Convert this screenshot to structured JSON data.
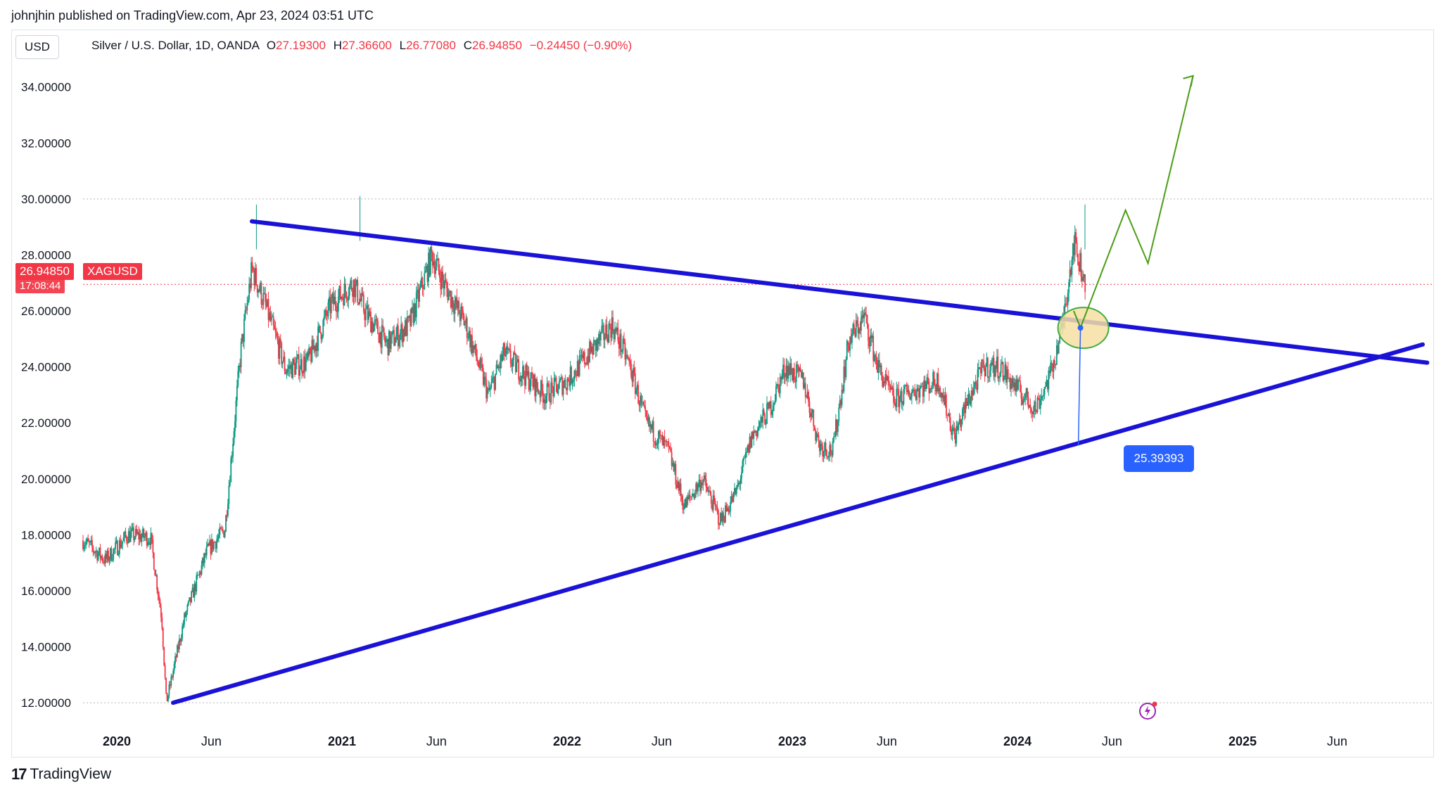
{
  "header": {
    "text": "johnjhin published on TradingView.com, Apr 23, 2024 03:51 UTC"
  },
  "toolbar": {
    "currency": "USD"
  },
  "legend": {
    "symbol": "Silver / U.S. Dollar, 1D, OANDA",
    "o_label": "O",
    "o_value": "27.19300",
    "h_label": "H",
    "h_value": "27.36600",
    "l_label": "L",
    "l_value": "26.77080",
    "c_label": "C",
    "c_value": "26.94850",
    "change": "−0.24450 (−0.90%)"
  },
  "price_tag": {
    "value": "26.94850",
    "time": "17:08:44",
    "symbol": "XAGUSD"
  },
  "point_badge": {
    "value": "25.39393"
  },
  "footer": {
    "logo": "17",
    "brand": "TradingView"
  },
  "colors": {
    "up": "#089981",
    "down": "#f23645",
    "trend": "#1a12d6",
    "projection": "#4a9d16",
    "badge": "#2962ff",
    "highlight": "#f6dfa3"
  },
  "chart_data": {
    "type": "line",
    "title": "Silver / U.S. Dollar, 1D, OANDA",
    "xlabel": "",
    "ylabel": "",
    "ylim": [
      11.4,
      35.6
    ],
    "xlim": [
      2019.85,
      2025.85
    ],
    "grid": false,
    "y_ticks": [
      "34.00000",
      "32.00000",
      "30.00000",
      "28.00000",
      "26.00000",
      "24.00000",
      "22.00000",
      "20.00000",
      "18.00000",
      "16.00000",
      "14.00000",
      "12.00000"
    ],
    "y_tick_values": [
      34,
      32,
      30,
      28,
      26,
      24,
      22,
      20,
      18,
      16,
      14,
      12
    ],
    "x_ticks": [
      {
        "label": "2020",
        "t": 2020.0
      },
      {
        "label": "Jun",
        "t": 2020.42
      },
      {
        "label": "2021",
        "t": 2021.0
      },
      {
        "label": "Jun",
        "t": 2021.42
      },
      {
        "label": "2022",
        "t": 2022.0
      },
      {
        "label": "Jun",
        "t": 2022.42
      },
      {
        "label": "2023",
        "t": 2023.0
      },
      {
        "label": "Jun",
        "t": 2023.42
      },
      {
        "label": "2024",
        "t": 2024.0
      },
      {
        "label": "Jun",
        "t": 2024.42
      },
      {
        "label": "2025",
        "t": 2025.0
      },
      {
        "label": "Jun",
        "t": 2025.42
      }
    ],
    "reference_lines": [
      30.0,
      26.9485,
      12.0
    ],
    "series": [
      {
        "name": "XAGUSD close",
        "x": [
          2019.85,
          2019.95,
          2020.05,
          2020.15,
          2020.2,
          2020.22,
          2020.3,
          2020.4,
          2020.48,
          2020.55,
          2020.6,
          2020.66,
          2020.75,
          2020.85,
          2020.95,
          2021.05,
          2021.1,
          2021.2,
          2021.3,
          2021.4,
          2021.45,
          2021.55,
          2021.65,
          2021.72,
          2021.8,
          2021.9,
          2022.0,
          2022.1,
          2022.2,
          2022.28,
          2022.35,
          2022.45,
          2022.52,
          2022.6,
          2022.68,
          2022.75,
          2022.82,
          2022.9,
          2022.97,
          2023.05,
          2023.12,
          2023.18,
          2023.25,
          2023.32,
          2023.38,
          2023.45,
          2023.55,
          2023.65,
          2023.72,
          2023.78,
          2023.85,
          2023.92,
          2024.0,
          2024.08,
          2024.15,
          2024.2,
          2024.25,
          2024.3
        ],
        "values": [
          17.8,
          17.1,
          18.0,
          17.9,
          15.0,
          12.0,
          15.0,
          17.4,
          18.2,
          24.5,
          27.5,
          26.2,
          23.9,
          24.2,
          26.2,
          27.0,
          26.0,
          24.8,
          25.5,
          28.0,
          27.0,
          25.5,
          23.0,
          24.5,
          23.8,
          23.0,
          23.5,
          24.5,
          25.5,
          24.0,
          22.0,
          21.0,
          19.0,
          20.0,
          18.5,
          19.5,
          21.5,
          22.5,
          24.0,
          23.5,
          21.2,
          21.0,
          24.9,
          25.8,
          24.0,
          22.8,
          23.2,
          23.5,
          21.5,
          22.8,
          24.0,
          24.0,
          23.2,
          22.5,
          23.8,
          25.5,
          28.5,
          27.0
        ]
      }
    ],
    "trendlines": [
      {
        "name": "upper resistance",
        "from": [
          2020.6,
          29.2
        ],
        "to": [
          2025.82,
          24.15
        ]
      },
      {
        "name": "lower support",
        "from": [
          2020.25,
          12.0
        ],
        "to": [
          2025.8,
          24.8
        ]
      }
    ],
    "projection": {
      "name": "projected path",
      "x": [
        2024.25,
        2024.28,
        2024.48,
        2024.58,
        2024.78
      ],
      "values": [
        26.0,
        25.4,
        29.6,
        27.7,
        34.4
      ]
    },
    "annotation": {
      "label": "25.39393",
      "at": [
        2024.28,
        25.39393
      ]
    }
  }
}
